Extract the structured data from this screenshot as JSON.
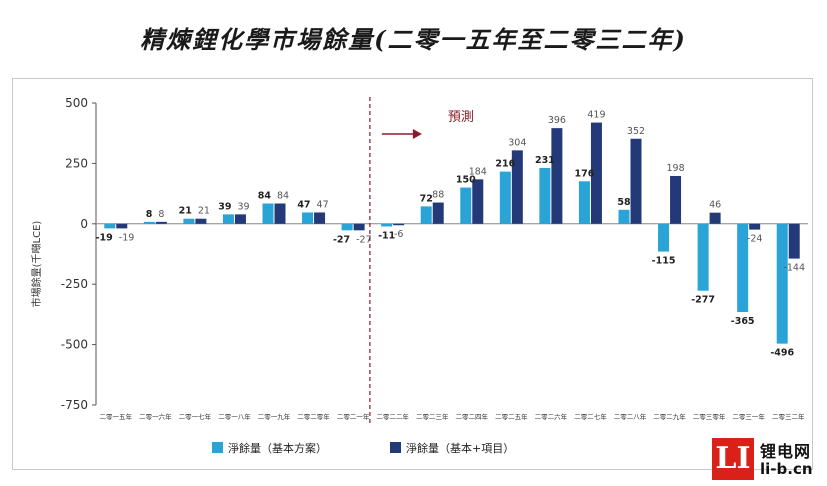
{
  "title": "精煉鋰化學市場餘量(二零一五年至二零三二年)",
  "annotation": "預測",
  "logo": {
    "mark": "LI",
    "cn": "锂电网",
    "url": "li-b.cn"
  },
  "colors": {
    "series1": "#2aa3d6",
    "series2": "#243a78",
    "divider": "#8b1a2a",
    "arrow": "#8b1a2a"
  },
  "chart_data": {
    "type": "bar",
    "title": "精煉鋰化學市場餘量(二零一五年至二零三二年)",
    "ylabel": "市場餘量(千噸LCE)",
    "xlabel": "",
    "ylim": [
      -750,
      500
    ],
    "yticks": [
      500,
      250,
      0,
      -250,
      -500,
      -750
    ],
    "grid": false,
    "legend_position": "bottom",
    "forecast_start_index": 7,
    "categories": [
      "二零一五年",
      "二零一六年",
      "二零一七年",
      "二零一八年",
      "二零一九年",
      "二零二零年",
      "二零二一年",
      "二零二二年",
      "二零二三年",
      "二零二四年",
      "二零二五年",
      "二零二六年",
      "二零二七年",
      "二零二八年",
      "二零二九年",
      "二零三零年",
      "二零三一年",
      "二零三二年"
    ],
    "series": [
      {
        "name": "淨餘量（基本方案）",
        "values": [
          -19,
          8,
          21,
          39,
          84,
          47,
          -27,
          -11,
          72,
          150,
          216,
          231,
          176,
          58,
          -115,
          -277,
          -365,
          -496
        ]
      },
      {
        "name": "淨餘量（基本+項目）",
        "values": [
          -19,
          8,
          21,
          39,
          84,
          47,
          -27,
          -6,
          88,
          184,
          304,
          396,
          419,
          352,
          198,
          46,
          -24,
          -144
        ]
      }
    ]
  }
}
